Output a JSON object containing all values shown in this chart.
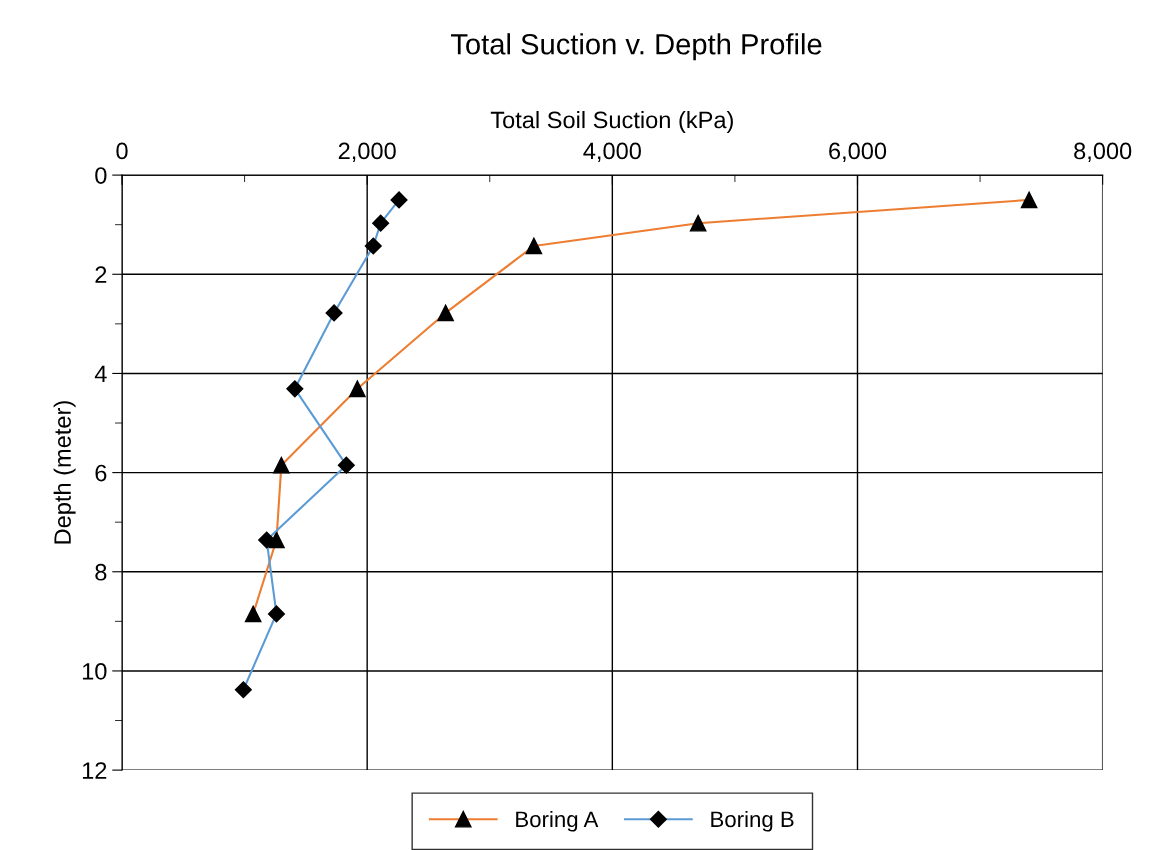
{
  "chart_data": {
    "type": "line",
    "title": "Total Suction v. Depth Profile",
    "xlabel": "Total Soil Suction (kPa)",
    "ylabel": "Depth (meter)",
    "xlim": [
      0,
      8000
    ],
    "ylim": [
      12,
      0
    ],
    "xticks": [
      {
        "value": 0,
        "label": "0"
      },
      {
        "value": 1000,
        "label": null
      },
      {
        "value": 2000,
        "label": "2,000"
      },
      {
        "value": 3000,
        "label": null
      },
      {
        "value": 4000,
        "label": "4,000"
      },
      {
        "value": 5000,
        "label": null
      },
      {
        "value": 6000,
        "label": "6,000"
      },
      {
        "value": 7000,
        "label": null
      },
      {
        "value": 8000,
        "label": "8,000"
      }
    ],
    "yticks": [
      0,
      {
        "value": 1,
        "label": null
      },
      2,
      {
        "value": 3,
        "label": null
      },
      4,
      {
        "value": 5,
        "label": null
      },
      6,
      {
        "value": 7,
        "label": null
      },
      8,
      {
        "value": 9,
        "label": null
      },
      10,
      {
        "value": 11,
        "label": null
      },
      12
    ],
    "grid": true,
    "legend": "bottom",
    "series": [
      {
        "name": "Boring A",
        "color": "#ed7d31",
        "marker": "triangle",
        "x": [
          7400,
          4700,
          3360,
          2640,
          1920,
          1300,
          1260,
          1070
        ],
        "values": [
          0.5,
          0.97,
          1.43,
          2.78,
          4.31,
          5.85,
          7.36,
          8.85
        ]
      },
      {
        "name": "Boring B",
        "color": "#5b9bd5",
        "marker": "diamond",
        "x": [
          2260,
          2110,
          2050,
          1730,
          1410,
          1830,
          1180,
          1260,
          990
        ],
        "values": [
          0.5,
          0.97,
          1.43,
          2.78,
          4.31,
          5.85,
          7.36,
          8.85,
          10.38
        ]
      }
    ]
  }
}
